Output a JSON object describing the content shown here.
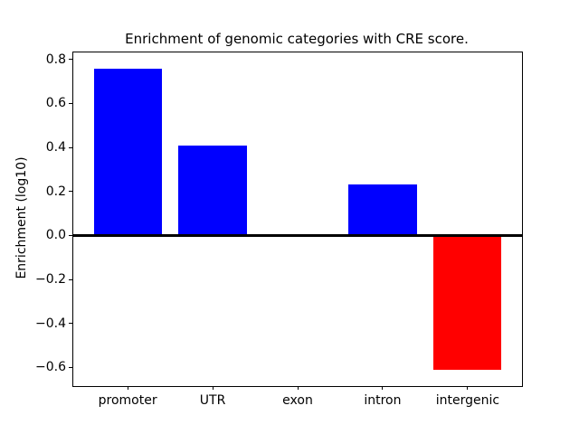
{
  "figure": {
    "title": "Enrichment of genomic categories with CRE score."
  },
  "chart_data": {
    "type": "bar",
    "title": "Enrichment of genomic categories with CRE score.",
    "xlabel": "",
    "ylabel": "Enrichment (log10)",
    "categories": [
      "promoter",
      "UTR",
      "exon",
      "intron",
      "intergenic"
    ],
    "values": [
      0.76,
      0.41,
      0.0,
      0.23,
      -0.61
    ],
    "bar_colors": [
      "#0000ff",
      "#0000ff",
      "#0000ff",
      "#0000ff",
      "#ff0000"
    ],
    "positive_color": "#0000ff",
    "negative_color": "#ff0000",
    "bar_width": 0.8,
    "xlim": [
      -0.64,
      4.64
    ],
    "ylim": [
      -0.685,
      0.832
    ],
    "yticks": [
      0.8,
      0.6,
      0.4,
      0.2,
      0.0,
      -0.2,
      -0.4,
      -0.6
    ],
    "ytick_labels": [
      "0.8",
      "0.6",
      "0.4",
      "0.2",
      "0.0",
      "−0.2",
      "−0.4",
      "−0.6"
    ],
    "zero_line": true,
    "grid": false,
    "legend": false
  }
}
